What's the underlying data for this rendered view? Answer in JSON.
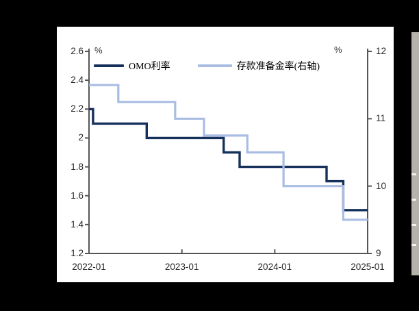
{
  "palette": {
    "canvas_bg": "#000000",
    "panel_bg": "#ffffff",
    "axis_color": "#555555",
    "text_color": "#262626"
  },
  "chart_data": {
    "type": "line",
    "line_style": "step-after",
    "title": "",
    "legend_position": "top-center",
    "grid": false,
    "x_axis": {
      "start": "2022-01",
      "end": "2025-01",
      "ticks": [
        {
          "value": "2022-01",
          "label": "2022-01"
        },
        {
          "value": "2023-01",
          "label": "2023-01"
        },
        {
          "value": "2024-01",
          "label": "2024-01"
        },
        {
          "value": "2025-01",
          "label": "2025-01"
        }
      ]
    },
    "left_axis": {
      "unit": "%",
      "min": 1.2,
      "max": 2.6,
      "ticks": [
        {
          "value": 2.6,
          "label": "2.6"
        },
        {
          "value": 2.4,
          "label": "2.4"
        },
        {
          "value": 2.2,
          "label": "2.2"
        },
        {
          "value": 2.0,
          "label": "2"
        },
        {
          "value": 1.8,
          "label": "1.8"
        },
        {
          "value": 1.6,
          "label": "1.6"
        },
        {
          "value": 1.4,
          "label": "1.4"
        },
        {
          "value": 1.2,
          "label": "1.2"
        }
      ]
    },
    "right_axis": {
      "unit": "%",
      "min": 9,
      "max": 12,
      "ticks": [
        {
          "value": 12,
          "label": "12"
        },
        {
          "value": 11,
          "label": "11"
        },
        {
          "value": 10,
          "label": "10"
        },
        {
          "value": 9,
          "label": "9"
        }
      ]
    },
    "series": [
      {
        "name": "OMO利率",
        "axis": "left",
        "color": "#16305c",
        "points": [
          {
            "date": "2022-01",
            "value": 2.2
          },
          {
            "date": "2022-01-17",
            "value": 2.1
          },
          {
            "date": "2022-08-15",
            "value": 2.0
          },
          {
            "date": "2023-06-13",
            "value": 1.9
          },
          {
            "date": "2023-08-15",
            "value": 1.8
          },
          {
            "date": "2024-07-22",
            "value": 1.7
          },
          {
            "date": "2024-09-27",
            "value": 1.5
          }
        ]
      },
      {
        "name": "存款准备金率(右轴)",
        "axis": "right",
        "color": "#a9bde3",
        "points": [
          {
            "date": "2022-01",
            "value": 11.5
          },
          {
            "date": "2022-04-25",
            "value": 11.25
          },
          {
            "date": "2022-12-05",
            "value": 11.0
          },
          {
            "date": "2023-03-27",
            "value": 10.75
          },
          {
            "date": "2023-09-15",
            "value": 10.5
          },
          {
            "date": "2024-02-05",
            "value": 10.0
          },
          {
            "date": "2024-09-27",
            "value": 9.5
          }
        ]
      }
    ]
  },
  "side_strip": {
    "dash_positions_y": [
      253,
      290,
      327,
      356
    ]
  }
}
